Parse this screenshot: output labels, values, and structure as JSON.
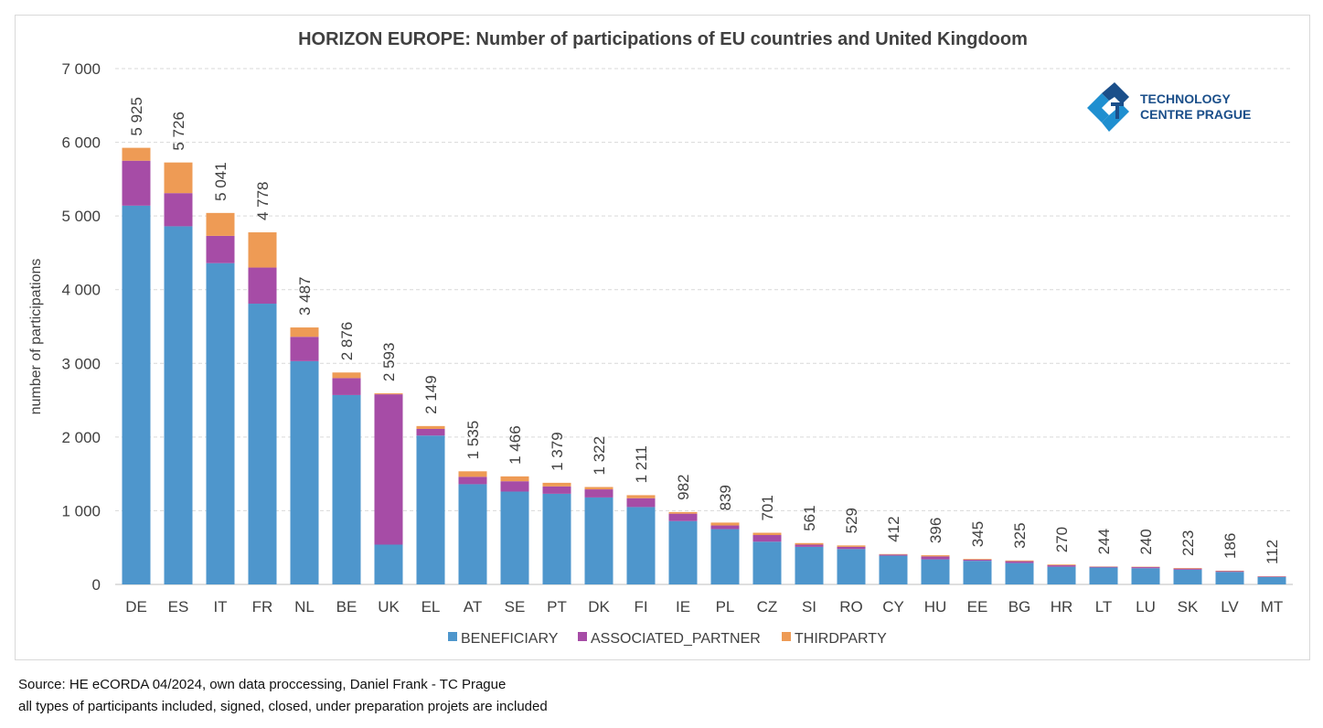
{
  "logo": {
    "line1": "TECHNOLOGY",
    "line2": "CENTRE PRAGUE"
  },
  "footer": {
    "source": "Source: HE eCORDA 04/2024, own data proccessing, Daniel Frank - TC Prague",
    "note": "all types of participants included, signed, closed, under preparation projets are included"
  },
  "colors": {
    "beneficiary": "#4e96cc",
    "associated_partner": "#a64ca6",
    "thirdparty": "#ee9b55"
  },
  "chart_data": {
    "type": "bar",
    "stacked": true,
    "title": "HORIZON EUROPE: Number of participations of EU countries and United Kingdoom",
    "xlabel": "",
    "ylabel": "number of participations",
    "ylim": [
      0,
      7000
    ],
    "yticks": [
      0,
      1000,
      2000,
      3000,
      4000,
      5000,
      6000,
      7000
    ],
    "ytick_labels": [
      "0",
      "1 000",
      "2 000",
      "3 000",
      "4 000",
      "5 000",
      "6 000",
      "7 000"
    ],
    "grid": true,
    "legend_position": "bottom",
    "categories": [
      "DE",
      "ES",
      "IT",
      "FR",
      "NL",
      "BE",
      "UK",
      "EL",
      "AT",
      "SE",
      "PT",
      "DK",
      "FI",
      "IE",
      "PL",
      "CZ",
      "SI",
      "RO",
      "CY",
      "HU",
      "EE",
      "BG",
      "HR",
      "LT",
      "LU",
      "SK",
      "LV",
      "MT"
    ],
    "series": [
      {
        "name": "BENEFICIARY",
        "values": [
          5140,
          4860,
          4360,
          3810,
          3030,
          2570,
          540,
          2020,
          1360,
          1260,
          1230,
          1180,
          1050,
          860,
          750,
          580,
          510,
          480,
          390,
          340,
          320,
          290,
          240,
          230,
          220,
          200,
          170,
          100
        ]
      },
      {
        "name": "ASSOCIATED_PARTNER",
        "values": [
          610,
          450,
          370,
          490,
          330,
          230,
          2040,
          90,
          100,
          140,
          100,
          110,
          120,
          100,
          50,
          90,
          30,
          30,
          15,
          40,
          15,
          25,
          20,
          10,
          15,
          15,
          10,
          8
        ]
      },
      {
        "name": "THIRDPARTY",
        "values": [
          175,
          416,
          311,
          478,
          127,
          76,
          13,
          39,
          75,
          66,
          49,
          32,
          41,
          22,
          39,
          31,
          21,
          19,
          7,
          16,
          10,
          10,
          10,
          4,
          5,
          8,
          6,
          4
        ]
      }
    ],
    "totals": [
      5925,
      5726,
      5041,
      4778,
      3487,
      2876,
      2593,
      2149,
      1535,
      1466,
      1379,
      1322,
      1211,
      982,
      839,
      701,
      561,
      529,
      412,
      396,
      345,
      325,
      270,
      244,
      240,
      223,
      186,
      112
    ],
    "total_labels": [
      "5 925",
      "5 726",
      "5 041",
      "4 778",
      "3 487",
      "2 876",
      "2 593",
      "2 149",
      "1 535",
      "1 466",
      "1 379",
      "1 322",
      "1 211",
      "982",
      "839",
      "701",
      "561",
      "529",
      "412",
      "396",
      "345",
      "325",
      "270",
      "244",
      "240",
      "223",
      "186",
      "112"
    ]
  }
}
